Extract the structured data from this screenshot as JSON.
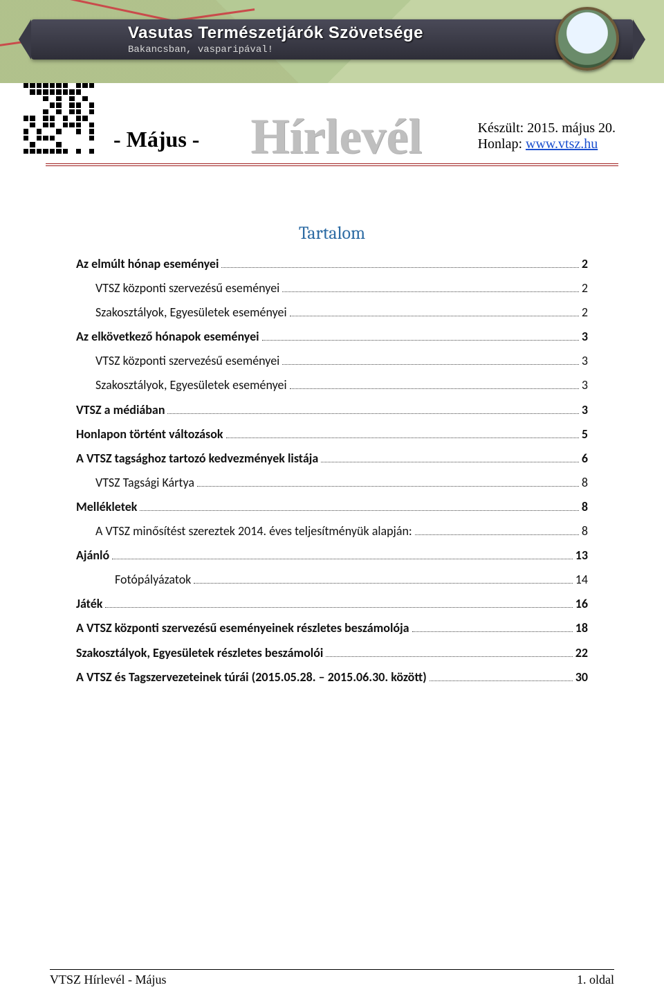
{
  "header": {
    "org_name": "Vasutas Természetjárók Szövetsége",
    "org_tagline": "Bakancsban, vasparipával!",
    "newsletter_title": "Hírlevél",
    "month_label": "- Május -",
    "made_label": "Készült: 2015. május 20.",
    "site_label": "Honlap: ",
    "site_link_text": "www.vtsz.hu",
    "colors": {
      "map_bg": "#c4d4a4",
      "ribbon_top": "#4a4a58",
      "ribbon_bottom": "#2e2e38",
      "trail": "#c94b4b",
      "rule": "#9e1b1b",
      "title_grey": "#bfbfbf",
      "toc_title": "#2e6ca4",
      "link": "#1a4fcf"
    }
  },
  "toc": {
    "title": "Tartalom",
    "items": [
      {
        "level": 0,
        "label": "Az elmúlt hónap eseményei",
        "page": "2"
      },
      {
        "level": 1,
        "label": "VTSZ központi szervezésű eseményei",
        "page": "2"
      },
      {
        "level": 1,
        "label": "Szakosztályok, Egyesületek eseményei",
        "page": "2"
      },
      {
        "level": 0,
        "label": "Az elkövetkező hónapok eseményei",
        "page": "3"
      },
      {
        "level": 1,
        "label": "VTSZ központi szervezésű eseményei",
        "page": "3"
      },
      {
        "level": 1,
        "label": "Szakosztályok, Egyesületek eseményei",
        "page": "3"
      },
      {
        "level": 0,
        "label": "VTSZ a médiában",
        "page": "3"
      },
      {
        "level": 0,
        "label": "Honlapon történt változások",
        "page": "5"
      },
      {
        "level": 0,
        "label": "A VTSZ tagsághoz tartozó kedvezmények listája",
        "page": "6"
      },
      {
        "level": 1,
        "label": "VTSZ Tagsági Kártya",
        "page": "8"
      },
      {
        "level": 0,
        "label": "Mellékletek",
        "page": "8"
      },
      {
        "level": 1,
        "label": "A VTSZ minősítést szereztek 2014. éves teljesítményük alapján:",
        "page": "8"
      },
      {
        "level": 0,
        "label": "Ajánló",
        "page": "13"
      },
      {
        "level": 2,
        "label": "Fotópályázatok",
        "page": "14"
      },
      {
        "level": 0,
        "label": "Játék",
        "page": "16"
      },
      {
        "level": 0,
        "label": "A VTSZ központi szervezésű eseményeinek részletes beszámolója",
        "page": "18"
      },
      {
        "level": 0,
        "label": "Szakosztályok, Egyesületek részletes beszámolói",
        "page": "22"
      },
      {
        "level": 0,
        "label": "A VTSZ és Tagszervezeteinek túrái (2015.05.28. – 2015.06.30. között)",
        "page": "30"
      }
    ]
  },
  "footer": {
    "left": "VTSZ Hírlevél - Május",
    "right": "1. oldal"
  },
  "typography": {
    "toc_title_fontsize": 26,
    "toc_line_fontsize": 18,
    "newsletter_title_fontsize": 72,
    "month_fontsize": 32,
    "meta_fontsize": 20,
    "footer_fontsize": 18
  }
}
